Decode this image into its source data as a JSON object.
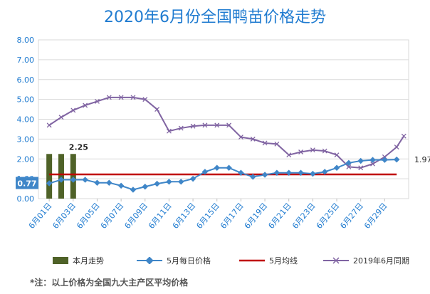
{
  "title": "2020年6月份全国鸭苗价格走势",
  "footnote": "*注：以上价格为全国九大主产区平均价格",
  "colors": {
    "bars": "#4f6228",
    "daily": "#3f86c8",
    "avg": "#c00000",
    "last_year": "#8064a2",
    "axis_text": "#1f7bd0",
    "grid": "#d9d9d9"
  },
  "chart_data": {
    "type": "line",
    "ylim": [
      0,
      8
    ],
    "yticks": [
      "0.00",
      "1.00",
      "2.00",
      "3.00",
      "4.00",
      "5.00",
      "6.00",
      "7.00",
      "8.00"
    ],
    "xticks": [
      "6月01日",
      "6月03日",
      "6月05日",
      "6月07日",
      "6月09日",
      "6月11日",
      "6月13日",
      "6月15日",
      "6月17日",
      "6月19日",
      "6月21日",
      "6月23日",
      "6月25日",
      "6月27日",
      "6月29日"
    ],
    "days": [
      1,
      2,
      3,
      4,
      5,
      6,
      7,
      8,
      9,
      10,
      11,
      12,
      13,
      14,
      15,
      16,
      17,
      18,
      19,
      20,
      21,
      22,
      23,
      24,
      25,
      26,
      27,
      28,
      29,
      30
    ],
    "bars": {
      "name": "本月走势",
      "days": [
        1,
        2,
        3
      ],
      "values": [
        2.25,
        2.25,
        2.25
      ],
      "label": "2.25"
    },
    "series": [
      {
        "name": "5月每日价格",
        "values": [
          0.77,
          0.95,
          0.95,
          0.95,
          0.8,
          0.8,
          0.65,
          0.45,
          0.6,
          0.75,
          0.85,
          0.85,
          1.0,
          1.35,
          1.55,
          1.55,
          1.3,
          1.1,
          1.2,
          1.3,
          1.3,
          1.3,
          1.25,
          1.35,
          1.55,
          1.8,
          1.9,
          1.95,
          1.95,
          1.97
        ],
        "start_label": "0.77",
        "end_label": "1.97"
      },
      {
        "name": "5月均线",
        "value": 1.22
      },
      {
        "name": "2019年6月同期",
        "values": [
          3.7,
          4.1,
          4.45,
          4.7,
          4.9,
          5.1,
          5.1,
          5.1,
          5.0,
          4.5,
          3.4,
          3.55,
          3.65,
          3.7,
          3.7,
          3.7,
          3.1,
          3.0,
          2.8,
          2.75,
          2.2,
          2.35,
          2.45,
          2.4,
          2.2,
          1.6,
          1.55,
          1.75,
          2.1,
          2.6
        ]
      }
    ],
    "last_year_end": 3.15
  }
}
